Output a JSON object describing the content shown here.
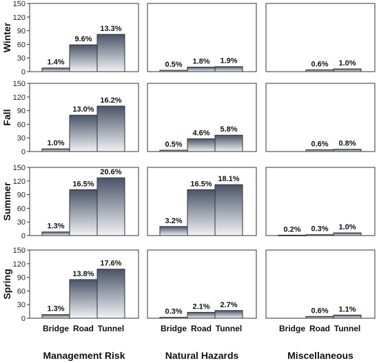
{
  "chart_data": {
    "type": "bar",
    "layout": "facet-grid",
    "columns": [
      "Management Risk",
      "Natural Hazards",
      "Miscellaneous"
    ],
    "rows": [
      "Winter",
      "Fall",
      "Summer",
      "Spring"
    ],
    "categories": [
      "Bridge",
      "Road",
      "Tunnel"
    ],
    "ylim": [
      0,
      150
    ],
    "yticks": [
      0,
      30,
      60,
      90,
      120,
      150
    ],
    "grid": false,
    "bar_gradient": {
      "top": "#4a5468",
      "bottom": "#f1f2f5"
    },
    "panels": [
      {
        "row": "Winter",
        "column": "Management Risk",
        "values": [
          8,
          59,
          82
        ],
        "labels": [
          "1.4%",
          "9.6%",
          "13.3%"
        ]
      },
      {
        "row": "Winter",
        "column": "Natural Hazards",
        "values": [
          3,
          10,
          11
        ],
        "labels": [
          "0.5%",
          "1.8%",
          "1.9%"
        ]
      },
      {
        "row": "Winter",
        "column": "Miscellaneous",
        "values": [
          0,
          4,
          6
        ],
        "labels": [
          "",
          "0.6%",
          "1.0%"
        ]
      },
      {
        "row": "Fall",
        "column": "Management Risk",
        "values": [
          6,
          80,
          100
        ],
        "labels": [
          "1.0%",
          "13.0%",
          "16.2%"
        ]
      },
      {
        "row": "Fall",
        "column": "Natural Hazards",
        "values": [
          3,
          28,
          36
        ],
        "labels": [
          "0.5%",
          "4.6%",
          "5.8%"
        ]
      },
      {
        "row": "Fall",
        "column": "Miscellaneous",
        "values": [
          0,
          4,
          5
        ],
        "labels": [
          "",
          "0.6%",
          "0.8%"
        ]
      },
      {
        "row": "Summer",
        "column": "Management Risk",
        "values": [
          8,
          101,
          127
        ],
        "labels": [
          "1.3%",
          "16.5%",
          "20.6%"
        ]
      },
      {
        "row": "Summer",
        "column": "Natural Hazards",
        "values": [
          20,
          101,
          112
        ],
        "labels": [
          "3.2%",
          "16.5%",
          "18.1%"
        ]
      },
      {
        "row": "Summer",
        "column": "Miscellaneous",
        "values": [
          1,
          2,
          6
        ],
        "labels": [
          "0.2%",
          "0.3%",
          "1.0%"
        ]
      },
      {
        "row": "Spring",
        "column": "Management Risk",
        "values": [
          8,
          85,
          108
        ],
        "labels": [
          "1.3%",
          "13.8%",
          "17.6%"
        ]
      },
      {
        "row": "Spring",
        "column": "Natural Hazards",
        "values": [
          2,
          13,
          17
        ],
        "labels": [
          "0.3%",
          "2.1%",
          "2.7%"
        ]
      },
      {
        "row": "Spring",
        "column": "Miscellaneous",
        "values": [
          0,
          4,
          7
        ],
        "labels": [
          "",
          "0.6%",
          "1.1%"
        ]
      }
    ]
  }
}
